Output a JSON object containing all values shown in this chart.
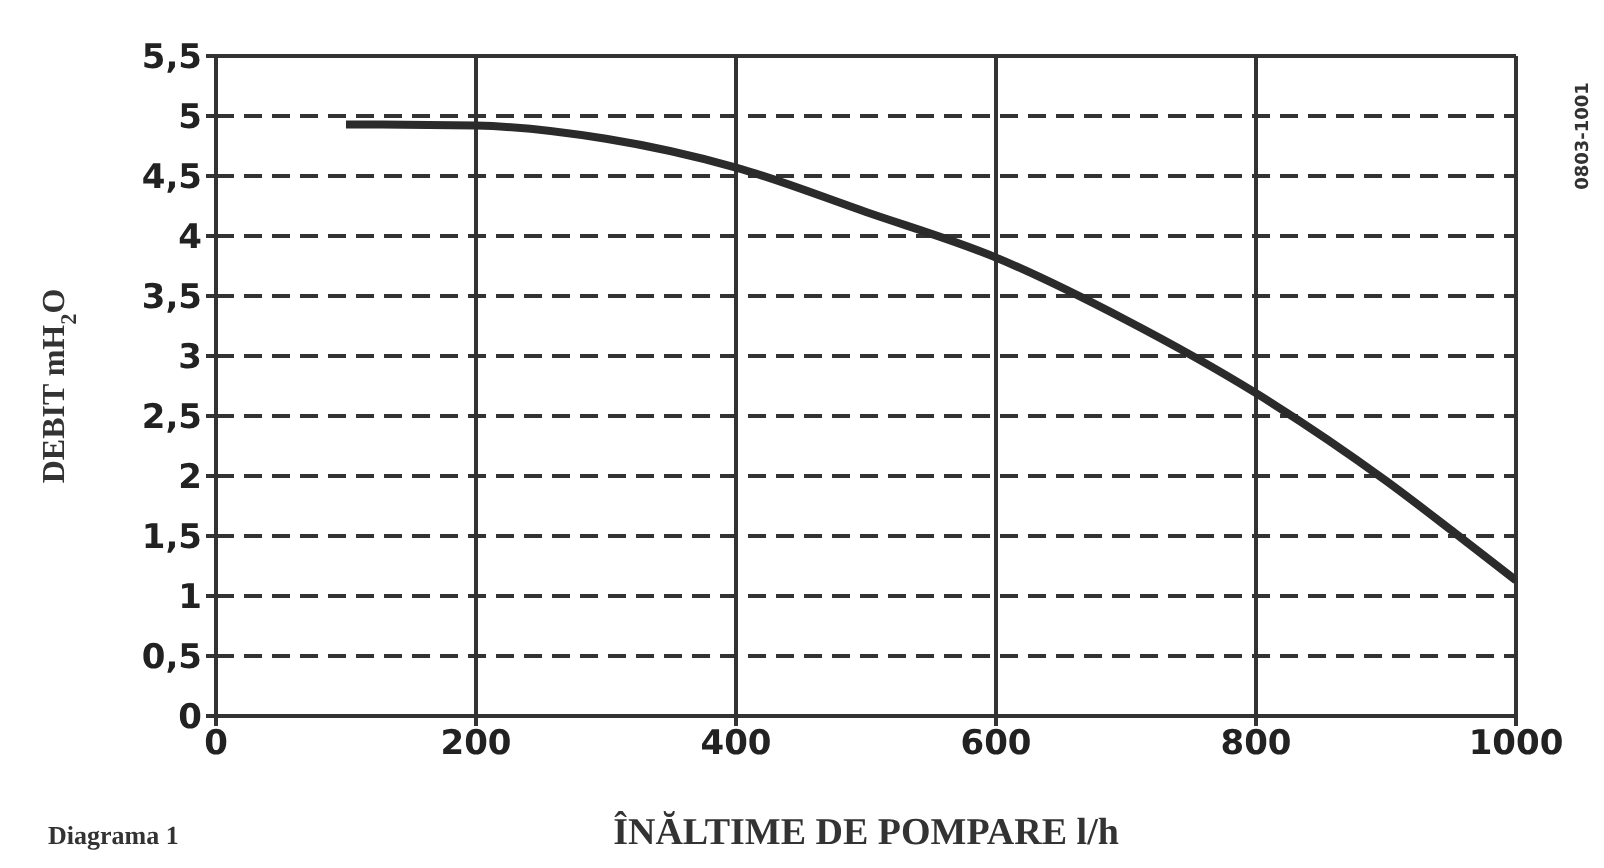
{
  "chart_data": {
    "type": "line",
    "xlabel": "ÎNĂLTIME DE POMPARE l/h",
    "ylabel": "DEBIT mH$_{2}$O",
    "x": [
      100,
      200,
      300,
      400,
      500,
      600,
      700,
      800,
      900,
      950,
      1000
    ],
    "series": [
      {
        "color": "#2b2b2b",
        "values": [
          4.93,
          4.92,
          4.81,
          4.57,
          4.2,
          3.82,
          3.3,
          2.69,
          1.96,
          1.55,
          1.13
        ]
      }
    ],
    "xlim": [
      0,
      1000
    ],
    "xticks": [
      0,
      200,
      400,
      600,
      800,
      1000
    ],
    "ylim": [
      0,
      5.5
    ],
    "yticks": [
      {
        "value": 0,
        "label": "0"
      },
      {
        "value": 0.5,
        "label": "0,5"
      },
      {
        "value": 1,
        "label": "1"
      },
      {
        "value": 1.5,
        "label": "1,5"
      },
      {
        "value": 2,
        "label": "2"
      },
      {
        "value": 2.5,
        "label": "2,5"
      },
      {
        "value": 3,
        "label": "3"
      },
      {
        "value": 3.5,
        "label": "3,5"
      },
      {
        "value": 4,
        "label": "4"
      },
      {
        "value": 4.5,
        "label": "4,5"
      },
      {
        "value": 5,
        "label": "5"
      },
      {
        "value": 5.5,
        "label": "5,5"
      }
    ],
    "grid": true,
    "marker": "none",
    "line_style": "solid",
    "legend": false,
    "annotations": [
      "Diagrama 1",
      "0803-1001"
    ]
  }
}
